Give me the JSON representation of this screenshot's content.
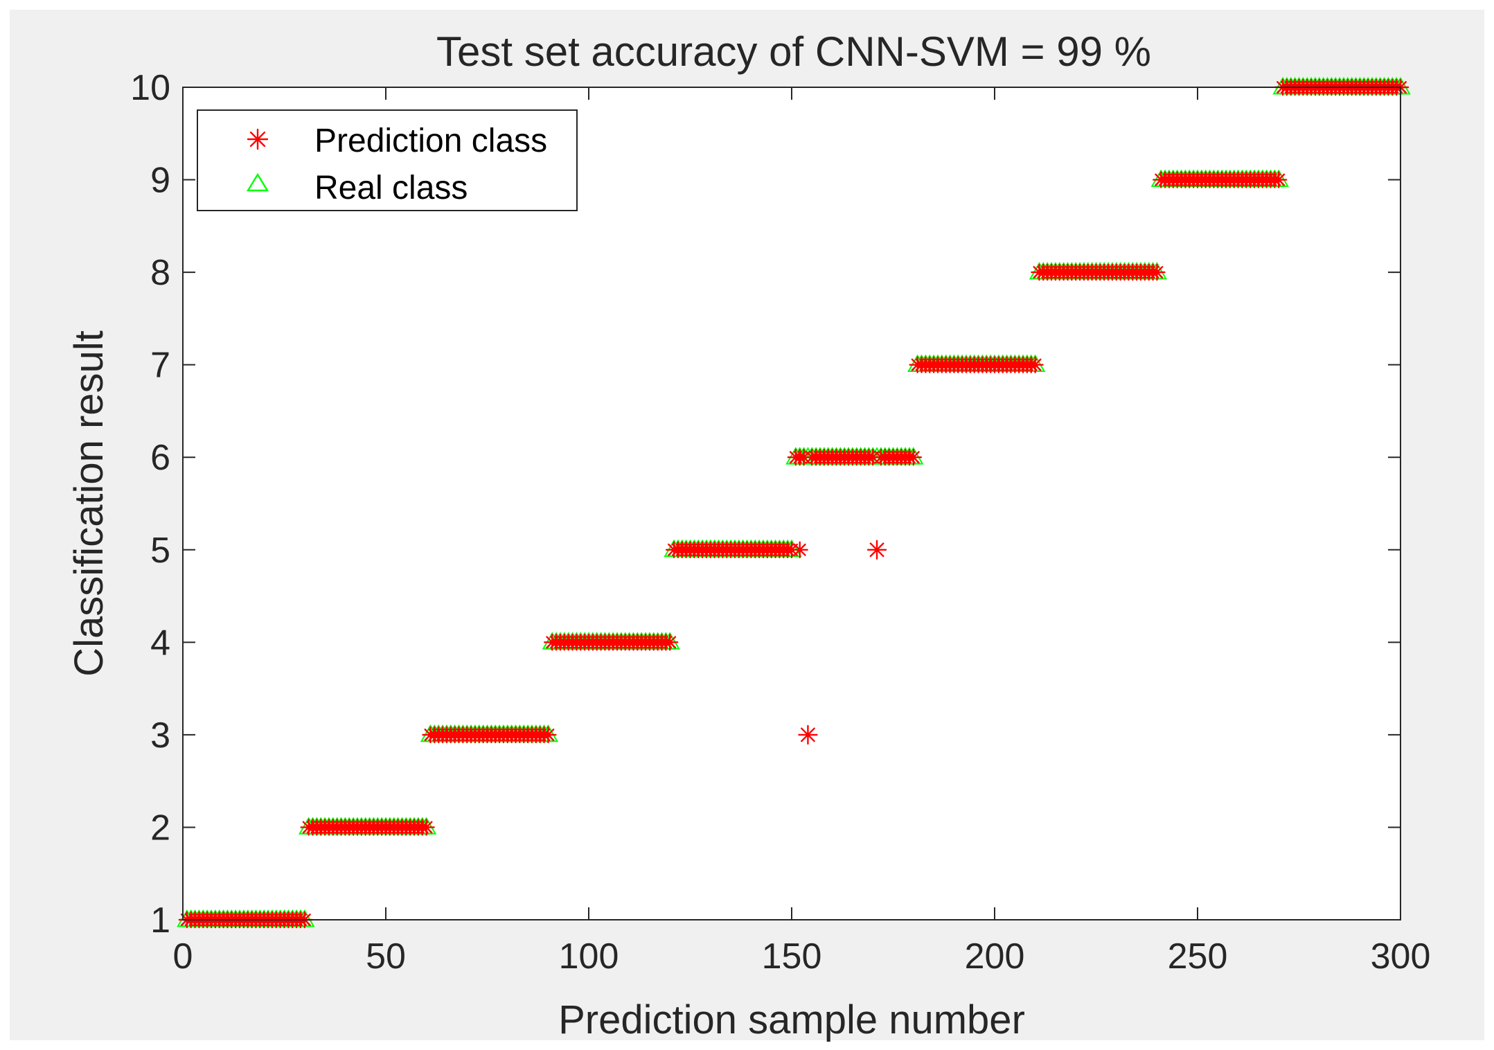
{
  "figure": {
    "background_color": "#f0f0f0",
    "outer_background_color": "#ffffff",
    "axes_background_color": "#ffffff"
  },
  "chart_data": {
    "type": "scatter",
    "title": "Test set accuracy of CNN-SVM = 99 %",
    "xlabel": "Prediction sample number",
    "ylabel": "Classification result",
    "xlim": [
      0,
      300
    ],
    "ylim": [
      1,
      10
    ],
    "xticks": [
      0,
      50,
      100,
      150,
      200,
      250,
      300
    ],
    "yticks": [
      1,
      2,
      3,
      4,
      5,
      6,
      7,
      8,
      9,
      10
    ],
    "grid": false,
    "legend_position": "top-left",
    "legend": [
      {
        "label": "Prediction class",
        "marker": "asterisk",
        "color": "#ff0000"
      },
      {
        "label": "Real class",
        "marker": "triangle",
        "color": "#00ff00"
      }
    ],
    "real_class_groups": [
      {
        "class": 1,
        "x_start": 1,
        "x_end": 30
      },
      {
        "class": 2,
        "x_start": 31,
        "x_end": 60
      },
      {
        "class": 3,
        "x_start": 61,
        "x_end": 90
      },
      {
        "class": 4,
        "x_start": 91,
        "x_end": 120
      },
      {
        "class": 5,
        "x_start": 121,
        "x_end": 150
      },
      {
        "class": 6,
        "x_start": 151,
        "x_end": 180
      },
      {
        "class": 7,
        "x_start": 181,
        "x_end": 210
      },
      {
        "class": 8,
        "x_start": 211,
        "x_end": 240
      },
      {
        "class": 9,
        "x_start": 241,
        "x_end": 270
      },
      {
        "class": 10,
        "x_start": 271,
        "x_end": 300
      }
    ],
    "misclassified_predictions": [
      {
        "x": 154,
        "real_class": 6,
        "predicted_class": 3
      },
      {
        "x": 171,
        "real_class": 6,
        "predicted_class": 5
      }
    ],
    "extra_prediction_points": [
      {
        "x": 152,
        "predicted_class": 5
      }
    ]
  }
}
